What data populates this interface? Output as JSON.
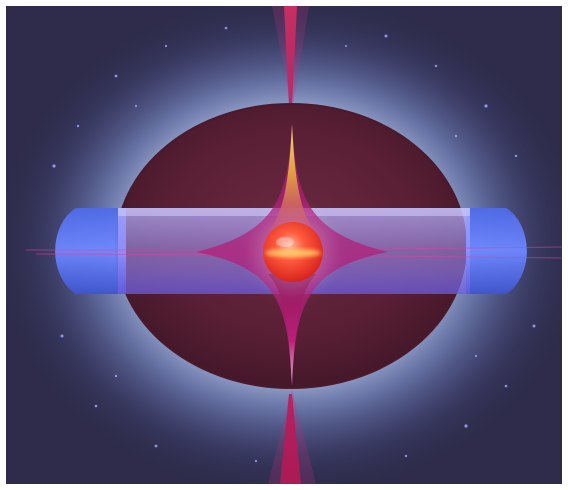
{
  "image": {
    "subject": "star-core-illustration",
    "colors": {
      "background": "#2e2c4a",
      "halo": "#c8dcff",
      "shell": "#5a1f35",
      "band": "#8c7dff",
      "core": "#ff3b2f",
      "jet": "#d2144c",
      "cusp": "#f2d24a"
    }
  }
}
